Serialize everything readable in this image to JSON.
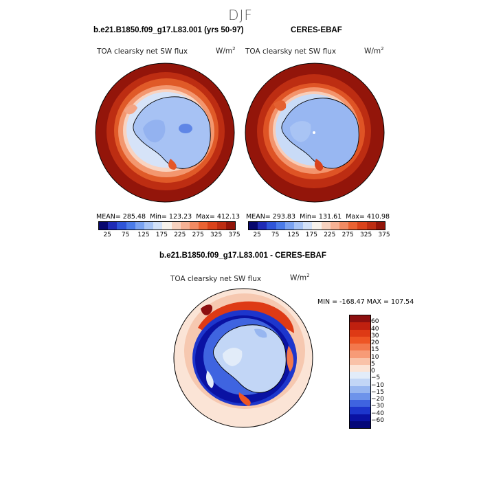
{
  "figure": {
    "season": "DJF",
    "panels": [
      {
        "title": "b.e21.B1850.f09_g17.L83.001 (yrs 50-97)",
        "variable": "TOA clearsky net SW flux",
        "units": "W/m",
        "units_sup": "2",
        "mean_label": "MEAN= 285.48",
        "min_label": "Min= 123.23",
        "max_label": "Max= 412.13"
      },
      {
        "title": "CERES-EBAF",
        "variable": "TOA clearsky net SW flux",
        "units": "W/m",
        "units_sup": "2",
        "mean_label": "MEAN= 293.83",
        "min_label": "Min= 131.61",
        "max_label": "Max= 410.98"
      }
    ],
    "diff_panel": {
      "title": "b.e21.B1850.f09_g17.L83.001 - CERES-EBAF",
      "variable": "TOA clearsky net SW flux",
      "units": "W/m",
      "units_sup": "2",
      "minmax_label": "MIN = -168.47 MAX = 107.54"
    },
    "abs_colorbar": {
      "tick_labels": [
        "25",
        "75",
        "125",
        "175",
        "225",
        "275",
        "325",
        "375"
      ],
      "colors": [
        "#08076e",
        "#1f2bb5",
        "#2f55d8",
        "#4b7be8",
        "#7aa2f0",
        "#a8c4f5",
        "#d2e1f8",
        "#f7f2ec",
        "#f8d2bf",
        "#f6b194",
        "#f18b63",
        "#ea6333",
        "#d9431b",
        "#bd2d12",
        "#92150a"
      ]
    },
    "diff_colorbar": {
      "tick_labels": [
        "60",
        "40",
        "30",
        "20",
        "15",
        "10",
        "5",
        "0",
        "−5",
        "−10",
        "−15",
        "−20",
        "−30",
        "−40",
        "−60"
      ],
      "colors": [
        "#8c0f0f",
        "#c0200f",
        "#de3a15",
        "#ee5524",
        "#f3784c",
        "#f79b77",
        "#f9c2a8",
        "#fbe4d6",
        "#e2ecf9",
        "#c2d6f6",
        "#97b6f0",
        "#6d93ea",
        "#3f64e0",
        "#1d36cc",
        "#0a12a3",
        "#050778"
      ]
    }
  }
}
